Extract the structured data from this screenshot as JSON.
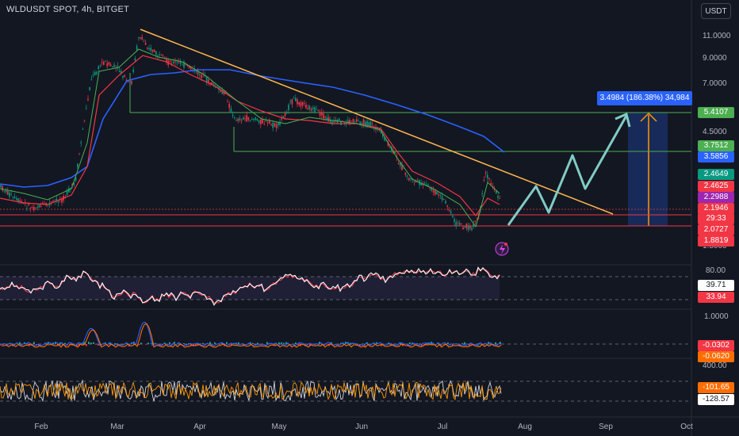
{
  "symbol_title": "WLDUSDT SPOT, 4h, BITGET",
  "currency_button": "USDT",
  "price_axis_labels": [
    "11.0000",
    "9.0000",
    "7.0000",
    "4.5000",
    "1.5000"
  ],
  "price_badges": [
    {
      "label": "5.4107",
      "color": "#4caf50"
    },
    {
      "label": "3.7512",
      "color": "#4caf50"
    },
    {
      "label": "3.5856",
      "color": "#2962ff"
    },
    {
      "label": "2.4649",
      "color": "#089981"
    },
    {
      "label": "2.4625",
      "color": "#f23645"
    },
    {
      "label": "2.2988",
      "color": "#9c27b0"
    },
    {
      "label": "2.1946",
      "color": "#f23645"
    },
    {
      "label": "29:33",
      "color": "#f23645"
    },
    {
      "label": "2.0727",
      "color": "#f23645"
    },
    {
      "label": "1.8819",
      "color": "#f23645"
    }
  ],
  "measure_label": "3.4984 (186.38%) 34,984",
  "rsi": {
    "axis_label": "80.00",
    "badges": [
      {
        "label": "39.71",
        "color": "#ffffff",
        "text": "#131722"
      },
      {
        "label": "33.94",
        "color": "#f23645",
        "text": "#ffffff"
      }
    ]
  },
  "macd": {
    "axis_label": "1.0000",
    "badges": [
      {
        "label": "-0.0302",
        "color": "#f23645"
      },
      {
        "label": "-0.0620",
        "color": "#ff6d00"
      }
    ]
  },
  "cci": {
    "axis_label": "400.00",
    "badges": [
      {
        "label": "-101.65",
        "color": "#ff6d00",
        "text": "#ffffff"
      },
      {
        "label": "-128.57",
        "color": "#ffffff",
        "text": "#131722"
      }
    ]
  },
  "time_axis": [
    "Feb",
    "Mar",
    "Apr",
    "May",
    "Jun",
    "Jul",
    "Aug",
    "Sep",
    "Oct"
  ],
  "colors": {
    "background": "#131722",
    "up": "#089981",
    "down": "#f23645",
    "trendline": "#ffb74d",
    "ma_blue": "#2962ff",
    "level_green": "#4caf50",
    "projection": "#80cbc4"
  }
}
